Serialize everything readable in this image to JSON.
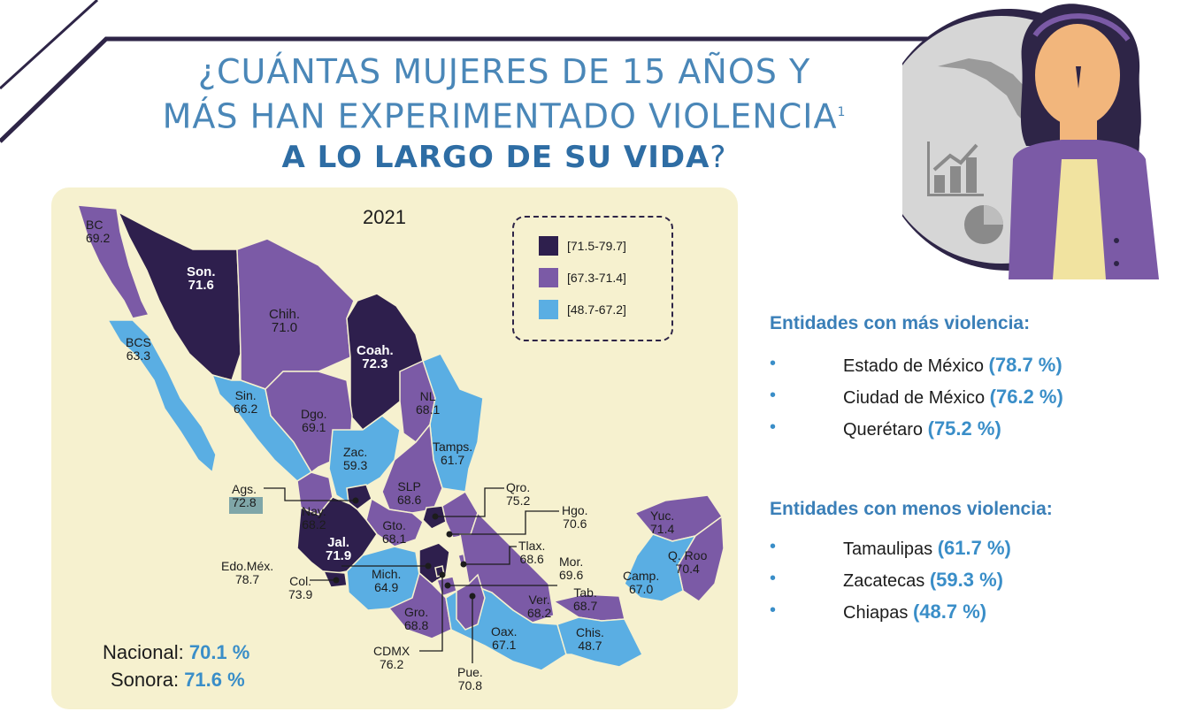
{
  "title": {
    "line1": "¿CUÁNTAS MUJERES DE 15 AÑOS Y",
    "line2": "MÁS HAN EXPERIMENTADO VIOLENCIA",
    "footnote_mark": "1",
    "line3": "A LO LARGO DE SU VIDA",
    "line3_end": "?"
  },
  "chart_data": {
    "type": "choropleth-map",
    "title": "2021",
    "legend": [
      {
        "label": "[71.5-79.7]",
        "color": "#2e1f4d"
      },
      {
        "label": "[67.3-71.4]",
        "color": "#7b5aa6"
      },
      {
        "label": "[48.7-67.2]",
        "color": "#5aaee3"
      }
    ],
    "regions": [
      {
        "name": "BC",
        "value": "69.2"
      },
      {
        "name": "Son.",
        "value": "71.6"
      },
      {
        "name": "Chih.",
        "value": "71.0"
      },
      {
        "name": "Coah.",
        "value": "72.3"
      },
      {
        "name": "BCS",
        "value": "63.3"
      },
      {
        "name": "Sin.",
        "value": "66.2"
      },
      {
        "name": "NL",
        "value": "68.1"
      },
      {
        "name": "Dgo.",
        "value": "69.1"
      },
      {
        "name": "Zac.",
        "value": "59.3"
      },
      {
        "name": "Tamps.",
        "value": "61.7"
      },
      {
        "name": "Ags.",
        "value": "72.8"
      },
      {
        "name": "SLP",
        "value": "68.6"
      },
      {
        "name": "Qro.",
        "value": "75.2"
      },
      {
        "name": "Nay.",
        "value": "68.2"
      },
      {
        "name": "Hgo.",
        "value": "70.6"
      },
      {
        "name": "Gto.",
        "value": "68.1"
      },
      {
        "name": "Yuc.",
        "value": "71.4"
      },
      {
        "name": "Tlax.",
        "value": "68.6"
      },
      {
        "name": "Jal.",
        "value": "71.9"
      },
      {
        "name": "Q. Roo",
        "value": "70.4"
      },
      {
        "name": "Edo.Méx.",
        "value": "78.7"
      },
      {
        "name": "Mor.",
        "value": "69.6"
      },
      {
        "name": "Camp.",
        "value": "67.0"
      },
      {
        "name": "Col.",
        "value": "73.9"
      },
      {
        "name": "Mich.",
        "value": "64.9"
      },
      {
        "name": "Ver.",
        "value": "68.2"
      },
      {
        "name": "Tab.",
        "value": "68.7"
      },
      {
        "name": "Gro.",
        "value": "68.8"
      },
      {
        "name": "Oax.",
        "value": "67.1"
      },
      {
        "name": "Chis.",
        "value": "48.7"
      },
      {
        "name": "CDMX",
        "value": "76.2"
      },
      {
        "name": "Pue.",
        "value": "70.8"
      }
    ],
    "national": {
      "label": "Nacional:",
      "value": "70.1 %"
    },
    "highlight": {
      "label": "Sonora:",
      "value": "71.6 %"
    }
  },
  "sidebar": {
    "most_heading": "Entidades con más violencia:",
    "most": [
      {
        "name": "Estado de México",
        "value": "(78.7 %)"
      },
      {
        "name": "Ciudad de México",
        "value": "(76.2 %)"
      },
      {
        "name": "Querétaro",
        "value": "(75.2 %)"
      }
    ],
    "least_heading": "Entidades con menos violencia:",
    "least": [
      {
        "name": "Tamaulipas",
        "value": "(61.7 %)"
      },
      {
        "name": "Zacatecas",
        "value": "(59.3 %)"
      },
      {
        "name": "Chiapas",
        "value": "(48.7 %)"
      }
    ],
    "bullet": "•"
  },
  "colors": {
    "dark": "#2e1f4d",
    "mid": "#7b5aa6",
    "light": "#5aaee3",
    "panel": "#f6f1cf",
    "accent": "#3a8ec8"
  }
}
